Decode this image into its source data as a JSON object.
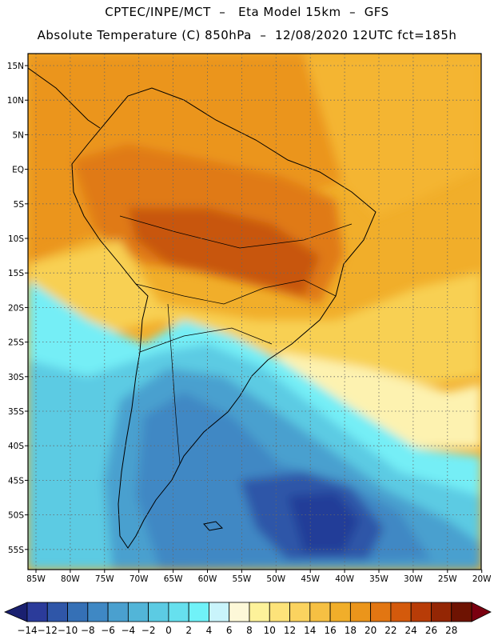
{
  "header": {
    "line1": "CPTEC/INPE/MCT  –   Eta Model 15km  –  GFS",
    "line2": "Absolute Temperature (C) 850hPa  –  12/08/2020 12UTC fct=185h"
  },
  "axes": {
    "lat_labels": [
      "15N",
      "10N",
      "5N",
      "EQ",
      "5S",
      "10S",
      "15S",
      "20S",
      "25S",
      "30S",
      "35S",
      "40S",
      "45S",
      "50S",
      "55S"
    ],
    "lon_labels": [
      "85W",
      "80W",
      "75W",
      "70W",
      "65W",
      "60W",
      "55W",
      "50W",
      "45W",
      "40W",
      "35W",
      "30W",
      "25W",
      "20W"
    ]
  },
  "colorbar": {
    "labels": [
      "-14",
      "-12",
      "-10",
      "-8",
      "-6",
      "-4",
      "-2",
      "0",
      "2",
      "4",
      "6",
      "8",
      "10",
      "12",
      "14",
      "16",
      "18",
      "20",
      "22",
      "24",
      "26",
      "28"
    ],
    "colors": [
      "#2b3b9a",
      "#2f56a8",
      "#3570b6",
      "#3f88c4",
      "#4aa0cf",
      "#52b5d8",
      "#5ccbe3",
      "#66e0ee",
      "#70f2f8",
      "#c9f4fb",
      "#fdf8d8",
      "#fdf29a",
      "#fde37a",
      "#fbd35f",
      "#f6c043",
      "#f1ae2a",
      "#eb951b",
      "#e27612",
      "#d45a0c",
      "#b83c07",
      "#942604",
      "#6e1302"
    ],
    "under_color": "#1a2070",
    "over_color": "#7a0010"
  },
  "map_colors": {
    "warm_core": "#c8560c",
    "warm": "#e07a14",
    "orange": "#ee9c1c",
    "yellow_orange": "#f4b531",
    "yellow": "#f8d052",
    "pale": "#fdf2b0",
    "cyan_light": "#74eef6",
    "cyan": "#5ccbe3",
    "blue_mid": "#3f88c4",
    "blue_deep": "#2f56a8",
    "blue_darkest": "#223d98"
  }
}
